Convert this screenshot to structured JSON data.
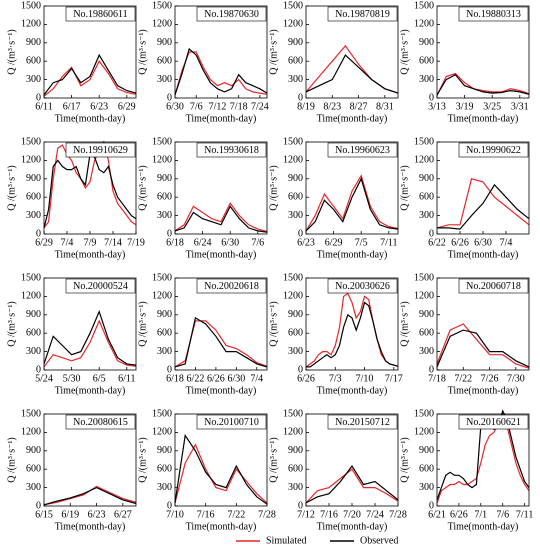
{
  "chart_data": [
    {
      "type": "line",
      "title": "No.19860611",
      "x_label": "Time(month-day)",
      "y_label": "Q /(m³·s⁻¹)",
      "categories": [
        "6/11",
        null,
        null,
        "6/17",
        null,
        null,
        "6/23",
        null,
        null,
        "6/29",
        null
      ],
      "ylim": [
        0,
        1500
      ],
      "yticks": [
        0,
        300,
        600,
        900,
        1200,
        1500
      ],
      "series": [
        {
          "name": "Simulated",
          "color": "#e8262a",
          "values": [
            30,
            150,
            350,
            500,
            200,
            300,
            600,
            400,
            150,
            90,
            60
          ]
        },
        {
          "name": "Observed",
          "color": "#000000",
          "values": [
            50,
            250,
            300,
            480,
            250,
            350,
            700,
            450,
            200,
            120,
            80
          ]
        }
      ]
    },
    {
      "type": "line",
      "title": "No.19870630",
      "x_label": "Time(month-day)",
      "y_label": "Q /(m³·s⁻¹)",
      "categories": [
        "6/30",
        null,
        null,
        "7/6",
        null,
        null,
        "7/12",
        null,
        null,
        "7/18",
        null,
        null,
        "7/24",
        null
      ],
      "ylim": [
        0,
        1500
      ],
      "yticks": [
        0,
        300,
        600,
        900,
        1200,
        1500
      ],
      "series": [
        {
          "name": "Simulated",
          "color": "#e8262a",
          "values": [
            50,
            450,
            750,
            750,
            500,
            300,
            200,
            250,
            200,
            300,
            150,
            100,
            80,
            60
          ]
        },
        {
          "name": "Observed",
          "color": "#000000",
          "values": [
            50,
            400,
            800,
            700,
            450,
            250,
            150,
            100,
            150,
            380,
            250,
            200,
            150,
            80
          ]
        }
      ]
    },
    {
      "type": "line",
      "title": "No.19870819",
      "x_label": "Time(month-day)",
      "y_label": "Q /(m³·s⁻¹)",
      "categories": [
        "8/19",
        null,
        "8/23",
        null,
        "8/27",
        null,
        "8/31",
        null
      ],
      "ylim": [
        0,
        1500
      ],
      "yticks": [
        0,
        300,
        600,
        900,
        1200,
        1500
      ],
      "series": [
        {
          "name": "Simulated",
          "color": "#e8262a",
          "values": [
            100,
            350,
            600,
            850,
            550,
            300,
            150,
            80
          ]
        },
        {
          "name": "Observed",
          "color": "#000000",
          "values": [
            100,
            200,
            300,
            700,
            500,
            300,
            150,
            80
          ]
        }
      ]
    },
    {
      "type": "line",
      "title": "No.19880313",
      "x_label": "Time(month-day)",
      "y_label": "Q /(m³·s⁻¹)",
      "categories": [
        "3/13",
        null,
        null,
        "3/19",
        null,
        null,
        "3/25",
        null,
        null,
        "3/31",
        null
      ],
      "ylim": [
        0,
        1500
      ],
      "yticks": [
        0,
        300,
        600,
        900,
        1200,
        1500
      ],
      "series": [
        {
          "name": "Simulated",
          "color": "#e8262a",
          "values": [
            40,
            350,
            400,
            250,
            150,
            120,
            100,
            100,
            150,
            120,
            70
          ]
        },
        {
          "name": "Observed",
          "color": "#000000",
          "values": [
            50,
            300,
            380,
            200,
            150,
            100,
            80,
            90,
            120,
            100,
            60
          ]
        }
      ]
    },
    {
      "type": "line",
      "title": "No.19910629",
      "x_label": "Time(month-day)",
      "y_label": "Q /(m³·s⁻¹)",
      "categories": [
        "6/29",
        null,
        null,
        null,
        null,
        "7/4",
        null,
        null,
        null,
        null,
        "7/9",
        null,
        null,
        null,
        null,
        "7/14",
        null,
        null,
        null,
        null,
        "7/19"
      ],
      "ylim": [
        0,
        1500
      ],
      "yticks": [
        0,
        300,
        600,
        900,
        1200,
        1500
      ],
      "series": [
        {
          "name": "Simulated",
          "color": "#e8262a",
          "values": [
            100,
            200,
            900,
            1400,
            1450,
            1300,
            1200,
            1000,
            900,
            750,
            850,
            1200,
            1350,
            1500,
            1200,
            700,
            500,
            400,
            300,
            200,
            150
          ]
        },
        {
          "name": "Observed",
          "color": "#000000",
          "values": [
            100,
            400,
            1100,
            1200,
            1100,
            1050,
            1050,
            1100,
            900,
            800,
            1300,
            1250,
            1050,
            1000,
            1100,
            800,
            600,
            500,
            400,
            300,
            250
          ]
        }
      ]
    },
    {
      "type": "line",
      "title": "No.19930618",
      "x_label": "Time(month-day)",
      "y_label": "Q /(m³·s⁻¹)",
      "categories": [
        "6/18",
        null,
        null,
        "6/24",
        null,
        null,
        "6/30",
        null,
        null,
        "7/6",
        null
      ],
      "ylim": [
        0,
        1500
      ],
      "yticks": [
        0,
        300,
        600,
        900,
        1200,
        1500
      ],
      "series": [
        {
          "name": "Simulated",
          "color": "#e8262a",
          "values": [
            50,
            150,
            450,
            350,
            250,
            200,
            500,
            300,
            150,
            80,
            40
          ]
        },
        {
          "name": "Observed",
          "color": "#000000",
          "values": [
            50,
            100,
            350,
            250,
            200,
            150,
            450,
            250,
            100,
            50,
            30
          ]
        }
      ]
    },
    {
      "type": "line",
      "title": "No.19960623",
      "x_label": "Time(month-day)",
      "y_label": "Q /(m³·s⁻¹)",
      "categories": [
        "6/23",
        null,
        null,
        "6/29",
        null,
        null,
        "7/5",
        null,
        null,
        "7/11",
        null
      ],
      "ylim": [
        0,
        1500
      ],
      "yticks": [
        0,
        300,
        600,
        900,
        1200,
        1500
      ],
      "series": [
        {
          "name": "Simulated",
          "color": "#e8262a",
          "values": [
            50,
            300,
            650,
            450,
            250,
            700,
            950,
            450,
            200,
            120,
            90
          ]
        },
        {
          "name": "Observed",
          "color": "#000000",
          "values": [
            50,
            200,
            550,
            400,
            200,
            600,
            900,
            400,
            150,
            100,
            80
          ]
        }
      ]
    },
    {
      "type": "line",
      "title": "No.19990622",
      "x_label": "Time(month-day)",
      "y_label": "Q /(m³·s⁻¹)",
      "categories": [
        "6/22",
        null,
        "6/26",
        null,
        "6/30",
        null,
        "7/4",
        null,
        null
      ],
      "ylim": [
        0,
        1500
      ],
      "yticks": [
        0,
        300,
        600,
        900,
        1200,
        1500
      ],
      "series": [
        {
          "name": "Simulated",
          "color": "#e8262a",
          "values": [
            100,
            150,
            150,
            900,
            850,
            600,
            450,
            300,
            150
          ]
        },
        {
          "name": "Observed",
          "color": "#000000",
          "values": [
            100,
            100,
            80,
            300,
            500,
            800,
            600,
            400,
            250
          ]
        }
      ]
    },
    {
      "type": "line",
      "title": "No.20000524",
      "x_label": "Time(month-day)",
      "y_label": "Q /(m³·s⁻¹)",
      "categories": [
        "5/24",
        null,
        null,
        "5/30",
        null,
        null,
        "6/5",
        null,
        null,
        "6/11",
        null
      ],
      "ylim": [
        0,
        1500
      ],
      "yticks": [
        0,
        300,
        600,
        900,
        1200,
        1500
      ],
      "series": [
        {
          "name": "Simulated",
          "color": "#e8262a",
          "values": [
            50,
            250,
            200,
            150,
            200,
            450,
            800,
            450,
            150,
            80,
            60
          ]
        },
        {
          "name": "Observed",
          "color": "#000000",
          "values": [
            100,
            550,
            400,
            250,
            300,
            600,
            950,
            500,
            200,
            100,
            80
          ]
        }
      ]
    },
    {
      "type": "line",
      "title": "No.20020618",
      "x_label": "Time(month-day)",
      "y_label": "Q /(m³·s⁻¹)",
      "categories": [
        "6/18",
        null,
        "6/22",
        null,
        "6/26",
        null,
        "6/30",
        null,
        "7/4",
        null
      ],
      "ylim": [
        0,
        1500
      ],
      "yticks": [
        0,
        300,
        600,
        900,
        1200,
        1500
      ],
      "series": [
        {
          "name": "Simulated",
          "color": "#e8262a",
          "values": [
            50,
            150,
            800,
            800,
            650,
            400,
            350,
            250,
            120,
            60
          ]
        },
        {
          "name": "Observed",
          "color": "#000000",
          "values": [
            50,
            100,
            850,
            750,
            550,
            300,
            300,
            200,
            100,
            50
          ]
        }
      ]
    },
    {
      "type": "line",
      "title": "No.20030626",
      "x_label": "Time(month-day)",
      "y_label": "Q /(m³·s⁻¹)",
      "categories": [
        "6/26",
        null,
        null,
        null,
        null,
        null,
        null,
        "7/3",
        null,
        null,
        null,
        null,
        null,
        null,
        "7/10",
        null,
        null,
        null,
        null,
        null,
        null,
        "7/17",
        null
      ],
      "ylim": [
        0,
        1500
      ],
      "yticks": [
        0,
        300,
        600,
        900,
        1200,
        1500
      ],
      "series": [
        {
          "name": "Simulated",
          "color": "#e8262a",
          "values": [
            50,
            100,
            150,
            250,
            300,
            300,
            250,
            400,
            700,
            1200,
            1250,
            1100,
            850,
            950,
            1200,
            1150,
            800,
            500,
            250,
            150,
            100,
            80,
            60
          ]
        },
        {
          "name": "Observed",
          "color": "#000000",
          "values": [
            50,
            50,
            100,
            150,
            200,
            250,
            200,
            250,
            400,
            700,
            900,
            850,
            650,
            850,
            1100,
            1050,
            800,
            500,
            300,
            150,
            100,
            80,
            60
          ]
        }
      ]
    },
    {
      "type": "line",
      "title": "No.20060718",
      "x_label": "Time(month-day)",
      "y_label": "Q /(m³·s⁻¹)",
      "categories": [
        "7/18",
        null,
        "7/22",
        null,
        "7/26",
        null,
        "7/30",
        null
      ],
      "ylim": [
        0,
        1500
      ],
      "yticks": [
        0,
        300,
        600,
        900,
        1200,
        1500
      ],
      "series": [
        {
          "name": "Simulated",
          "color": "#e8262a",
          "values": [
            100,
            650,
            750,
            500,
            250,
            250,
            100,
            30
          ]
        },
        {
          "name": "Observed",
          "color": "#000000",
          "values": [
            50,
            550,
            650,
            600,
            300,
            300,
            150,
            50
          ]
        }
      ]
    },
    {
      "type": "line",
      "title": "No.20080615",
      "x_label": "Time(month-day)",
      "y_label": "Q /(m³·s⁻¹)",
      "categories": [
        "6/15",
        null,
        "6/19",
        null,
        "6/23",
        null,
        "6/27",
        null
      ],
      "ylim": [
        0,
        1500
      ],
      "yticks": [
        0,
        300,
        600,
        900,
        1200,
        1500
      ],
      "series": [
        {
          "name": "Simulated",
          "color": "#e8262a",
          "values": [
            20,
            60,
            120,
            180,
            320,
            220,
            120,
            60
          ]
        },
        {
          "name": "Observed",
          "color": "#000000",
          "values": [
            20,
            80,
            130,
            200,
            300,
            200,
            100,
            40
          ]
        }
      ]
    },
    {
      "type": "line",
      "title": "No.20100710",
      "x_label": "Time(month-day)",
      "y_label": "Q /(m³·s⁻¹)",
      "categories": [
        "7/10",
        null,
        null,
        "7/16",
        null,
        null,
        "7/22",
        null,
        null,
        "7/28"
      ],
      "ylim": [
        0,
        1500
      ],
      "yticks": [
        0,
        300,
        600,
        900,
        1200,
        1500
      ],
      "series": [
        {
          "name": "Simulated",
          "color": "#e8262a",
          "values": [
            50,
            700,
            1000,
            600,
            300,
            250,
            600,
            400,
            200,
            50
          ]
        },
        {
          "name": "Observed",
          "color": "#000000",
          "values": [
            50,
            1150,
            900,
            550,
            350,
            300,
            650,
            350,
            150,
            30
          ]
        }
      ]
    },
    {
      "type": "line",
      "title": "No.20150712",
      "x_label": "Time(month-day)",
      "y_label": "Q /(m³·s⁻¹)",
      "categories": [
        "7/12",
        null,
        "7/16",
        null,
        "7/20",
        null,
        "7/24",
        null,
        "7/28"
      ],
      "ylim": [
        0,
        1500
      ],
      "yticks": [
        0,
        300,
        600,
        900,
        1200,
        1500
      ],
      "series": [
        {
          "name": "Simulated",
          "color": "#e8262a",
          "values": [
            50,
            250,
            300,
            450,
            600,
            300,
            300,
            200,
            80
          ]
        },
        {
          "name": "Observed",
          "color": "#000000",
          "values": [
            50,
            150,
            200,
            400,
            650,
            350,
            400,
            250,
            100
          ]
        }
      ]
    },
    {
      "type": "line",
      "title": "No.20160621",
      "x_label": "Time(month-day)",
      "y_label": "Q /(m³·s⁻¹)",
      "categories": [
        "6/21",
        null,
        null,
        null,
        null,
        "6/26",
        null,
        null,
        null,
        null,
        "7/1",
        null,
        null,
        null,
        null,
        "7/6",
        null,
        null,
        null,
        null,
        "7/11",
        null
      ],
      "ylim": [
        0,
        1500
      ],
      "yticks": [
        0,
        300,
        600,
        900,
        1200,
        1500
      ],
      "series": [
        {
          "name": "Simulated",
          "color": "#e8262a",
          "values": [
            50,
            250,
            300,
            350,
            350,
            400,
            350,
            350,
            400,
            450,
            700,
            1000,
            1150,
            1200,
            1350,
            1500,
            1300,
            1000,
            700,
            500,
            350,
            250
          ]
        },
        {
          "name": "Observed",
          "color": "#000000",
          "values": [
            100,
            300,
            500,
            550,
            500,
            500,
            450,
            350,
            300,
            350,
            1300,
            1350,
            1300,
            1250,
            1300,
            1550,
            1400,
            1100,
            800,
            600,
            400,
            300
          ]
        }
      ]
    }
  ]
}
